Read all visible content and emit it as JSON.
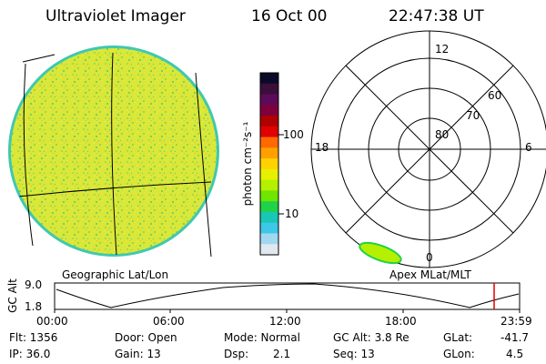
{
  "header": {
    "instrument": "Ultraviolet Imager",
    "date": "16 Oct 00",
    "time": "22:47:38 UT"
  },
  "colorbar": {
    "label": "photon cm⁻²s⁻¹",
    "ticks": [
      "100",
      "10"
    ],
    "colors": [
      "#0a0a28",
      "#3a0f3a",
      "#5c0a5a",
      "#80003c",
      "#b00000",
      "#e00000",
      "#ff6a00",
      "#ffa000",
      "#ffd200",
      "#e6f000",
      "#b4f000",
      "#6ee600",
      "#20d24a",
      "#18c8b4",
      "#3cc8e6",
      "#a0d8f0",
      "#e0e8f0"
    ]
  },
  "left_panel": {
    "caption": "Geographic Lat/Lon"
  },
  "right_panel": {
    "caption": "Apex MLat/MLT",
    "mlt_labels": [
      "12",
      "18",
      "6",
      "0"
    ],
    "lat_labels": [
      "60",
      "70",
      "80"
    ]
  },
  "altitude_plot": {
    "ylabel": "GC Alt",
    "yticks": [
      "9.0",
      "1.8"
    ],
    "xticks": [
      "00:00",
      "06:00",
      "12:00",
      "18:00",
      "23:59"
    ],
    "marker_color": "#e00000"
  },
  "info": {
    "flt": "Flt: 1356",
    "ip": "IP: 36.0",
    "door": "Door: Open",
    "gain": "Gain: 13",
    "mode": "Mode: Normal",
    "dsp": "Dsp:",
    "dsp_val": "2.1",
    "gcalt": "GC Alt: 3.8 Re",
    "seq": "Seq: 13",
    "glat": "GLat:",
    "glat_val": "-41.7",
    "glon": "GLon:",
    "glon_val": "4.5"
  }
}
